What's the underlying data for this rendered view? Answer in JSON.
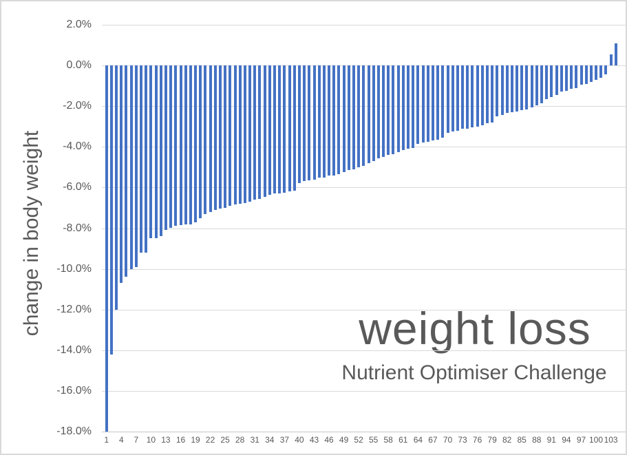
{
  "chart_data": {
    "type": "bar",
    "title": "weight loss",
    "subtitle": "Nutrient Optimiser Challenge",
    "ylabel": "change in body weight",
    "xlabel": "",
    "units": "%",
    "ylim": [
      -18,
      2
    ],
    "grid": true,
    "legend": false,
    "bar_color": "#4472C4",
    "gridline_color": "#D9D9D9",
    "text_color": "#595959",
    "y_ticks": [
      "2.0%",
      "0.0%",
      "-2.0%",
      "-4.0%",
      "-6.0%",
      "-8.0%",
      "-10.0%",
      "-12.0%",
      "-14.0%",
      "-16.0%",
      "-18.0%"
    ],
    "y_tick_values": [
      2,
      0,
      -2,
      -4,
      -6,
      -8,
      -10,
      -12,
      -14,
      -16,
      -18
    ],
    "x_tick_labels": [
      "1",
      "4",
      "7",
      "10",
      "13",
      "16",
      "19",
      "22",
      "25",
      "28",
      "31",
      "34",
      "37",
      "40",
      "43",
      "46",
      "49",
      "52",
      "55",
      "58",
      "61",
      "64",
      "67",
      "70",
      "73",
      "76",
      "79",
      "82",
      "85",
      "88",
      "91",
      "94",
      "97",
      "100",
      "103"
    ],
    "x_tick_step": 3,
    "categories": [
      1,
      2,
      3,
      4,
      5,
      6,
      7,
      8,
      9,
      10,
      11,
      12,
      13,
      14,
      15,
      16,
      17,
      18,
      19,
      20,
      21,
      22,
      23,
      24,
      25,
      26,
      27,
      28,
      29,
      30,
      31,
      32,
      33,
      34,
      35,
      36,
      37,
      38,
      39,
      40,
      41,
      42,
      43,
      44,
      45,
      46,
      47,
      48,
      49,
      50,
      51,
      52,
      53,
      54,
      55,
      56,
      57,
      58,
      59,
      60,
      61,
      62,
      63,
      64,
      65,
      66,
      67,
      68,
      69,
      70,
      71,
      72,
      73,
      74,
      75,
      76,
      77,
      78,
      79,
      80,
      81,
      82,
      83,
      84,
      85,
      86,
      87,
      88,
      89,
      90,
      91,
      92,
      93,
      94,
      95,
      96,
      97,
      98,
      99,
      100,
      101,
      102,
      103,
      104
    ],
    "values": [
      -18.0,
      -14.2,
      -12.0,
      -10.7,
      -10.4,
      -10.0,
      -9.9,
      -9.2,
      -9.2,
      -8.5,
      -8.5,
      -8.4,
      -8.1,
      -8.0,
      -7.9,
      -7.85,
      -7.8,
      -7.8,
      -7.7,
      -7.5,
      -7.3,
      -7.2,
      -7.1,
      -7.05,
      -7.0,
      -6.9,
      -6.85,
      -6.8,
      -6.75,
      -6.7,
      -6.6,
      -6.55,
      -6.45,
      -6.35,
      -6.3,
      -6.3,
      -6.25,
      -6.2,
      -6.15,
      -5.8,
      -5.7,
      -5.65,
      -5.6,
      -5.5,
      -5.5,
      -5.4,
      -5.4,
      -5.35,
      -5.25,
      -5.15,
      -5.1,
      -5.0,
      -4.95,
      -4.8,
      -4.7,
      -4.55,
      -4.5,
      -4.4,
      -4.35,
      -4.25,
      -4.15,
      -4.1,
      -4.05,
      -3.85,
      -3.8,
      -3.75,
      -3.7,
      -3.65,
      -3.55,
      -3.3,
      -3.25,
      -3.2,
      -3.1,
      -3.1,
      -3.05,
      -3.0,
      -2.95,
      -2.85,
      -2.8,
      -2.5,
      -2.45,
      -2.35,
      -2.3,
      -2.25,
      -2.2,
      -2.15,
      -2.05,
      -1.95,
      -1.85,
      -1.65,
      -1.55,
      -1.45,
      -1.3,
      -1.25,
      -1.15,
      -1.1,
      -0.95,
      -0.9,
      -0.8,
      -0.7,
      -0.6,
      -0.45,
      0.55,
      1.1
    ]
  }
}
